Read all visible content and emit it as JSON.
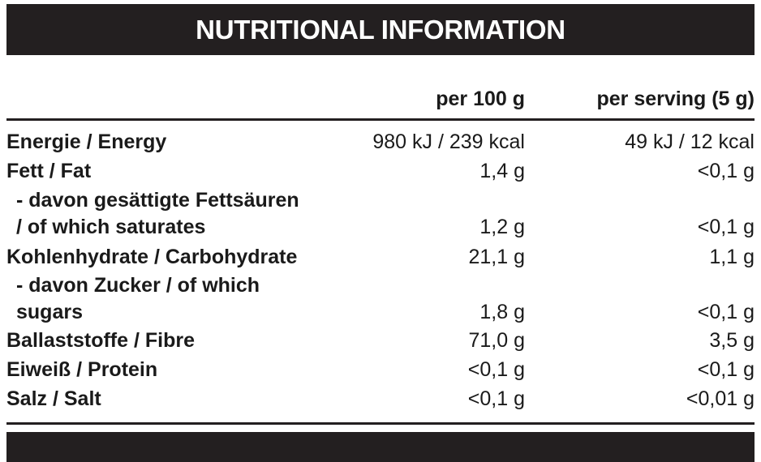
{
  "title": "NUTRITIONAL INFORMATION",
  "columns": {
    "per_100g": "per 100 g",
    "per_serving": "per serving (5 g)"
  },
  "rows": [
    {
      "label": "Energie / Energy",
      "per_100g": "980 kJ / 239 kcal",
      "per_serving": "49 kJ / 12 kcal"
    },
    {
      "label": "Fett / Fat",
      "per_100g": "1,4 g",
      "per_serving": "<0,1 g"
    },
    {
      "label": "- davon gesättigte Fettsäuren",
      "label_cont": "/ of which saturates",
      "per_100g": "1,2 g",
      "per_serving": "<0,1 g"
    },
    {
      "label": "Kohlenhydrate / Carbohydrate",
      "per_100g": "21,1 g",
      "per_serving": "1,1 g"
    },
    {
      "label": "- davon Zucker / of which",
      "label_cont": "sugars",
      "per_100g": "1,8 g",
      "per_serving": "<0,1 g"
    },
    {
      "label": "Ballaststoffe / Fibre",
      "per_100g": "71,0 g",
      "per_serving": "3,5 g"
    },
    {
      "label": "Eiweiß / Protein",
      "per_100g": "<0,1 g",
      "per_serving": "<0,1 g"
    },
    {
      "label": "Salz / Salt",
      "per_100g": "<0,1 g",
      "per_serving": "<0,01 g"
    }
  ]
}
